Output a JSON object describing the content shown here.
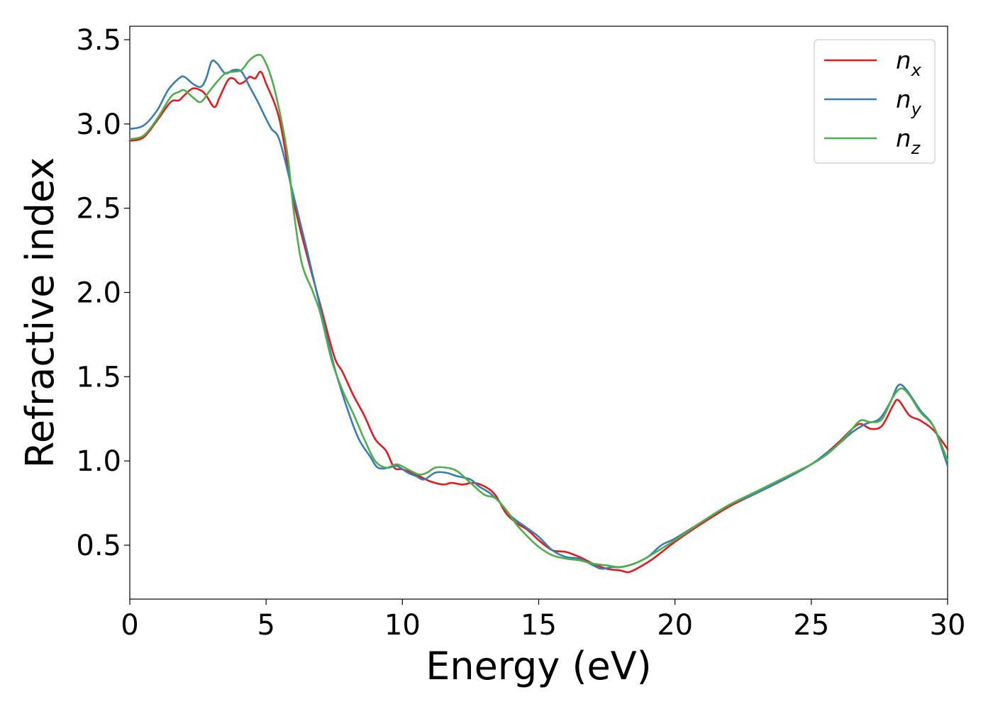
{
  "chart_data": {
    "type": "line",
    "title": "",
    "xlabel": "Energy (eV)",
    "ylabel": "Refractive index",
    "xlim": [
      0,
      30
    ],
    "ylim": [
      0.18,
      3.58
    ],
    "xticks": [
      0,
      5,
      10,
      15,
      20,
      25,
      30
    ],
    "xtick_labels": [
      "0",
      "5",
      "10",
      "15",
      "20",
      "25",
      "30"
    ],
    "yticks": [
      0.5,
      1.0,
      1.5,
      2.0,
      2.5,
      3.0,
      3.5
    ],
    "ytick_labels": [
      "0.5",
      "1.0",
      "1.5",
      "2.0",
      "2.5",
      "3.0",
      "3.5"
    ],
    "grid": false,
    "legend_position": "top-right",
    "series": [
      {
        "name": "n_x",
        "label_base": "n",
        "label_sub": "x",
        "color": "#e41a1c",
        "points": [
          [
            0,
            2.9
          ],
          [
            0.5,
            2.92
          ],
          [
            1,
            3.02
          ],
          [
            1.5,
            3.13
          ],
          [
            1.8,
            3.14
          ],
          [
            2,
            3.17
          ],
          [
            2.3,
            3.21
          ],
          [
            2.6,
            3.2
          ],
          [
            2.8,
            3.17
          ],
          [
            3.1,
            3.1
          ],
          [
            3.3,
            3.16
          ],
          [
            3.6,
            3.26
          ],
          [
            3.8,
            3.27
          ],
          [
            4.0,
            3.24
          ],
          [
            4.2,
            3.25
          ],
          [
            4.4,
            3.28
          ],
          [
            4.6,
            3.27
          ],
          [
            4.8,
            3.31
          ],
          [
            5.0,
            3.24
          ],
          [
            5.5,
            3.02
          ],
          [
            6.0,
            2.55
          ],
          [
            6.5,
            2.22
          ],
          [
            7.0,
            1.92
          ],
          [
            7.5,
            1.62
          ],
          [
            7.8,
            1.53
          ],
          [
            8.2,
            1.39
          ],
          [
            8.6,
            1.27
          ],
          [
            9.0,
            1.13
          ],
          [
            9.4,
            1.06
          ],
          [
            9.7,
            0.96
          ],
          [
            10.0,
            0.95
          ],
          [
            10.5,
            0.92
          ],
          [
            11.0,
            0.88
          ],
          [
            11.5,
            0.86
          ],
          [
            11.8,
            0.87
          ],
          [
            12.2,
            0.86
          ],
          [
            12.6,
            0.87
          ],
          [
            13.0,
            0.85
          ],
          [
            13.4,
            0.8
          ],
          [
            13.8,
            0.69
          ],
          [
            14.2,
            0.63
          ],
          [
            14.6,
            0.59
          ],
          [
            15.0,
            0.53
          ],
          [
            15.5,
            0.47
          ],
          [
            16.0,
            0.46
          ],
          [
            16.5,
            0.43
          ],
          [
            17.0,
            0.39
          ],
          [
            17.5,
            0.36
          ],
          [
            18.0,
            0.35
          ],
          [
            18.3,
            0.34
          ],
          [
            18.7,
            0.37
          ],
          [
            19.2,
            0.42
          ],
          [
            20.0,
            0.52
          ],
          [
            21.0,
            0.63
          ],
          [
            22.0,
            0.73
          ],
          [
            23.0,
            0.81
          ],
          [
            24.0,
            0.89
          ],
          [
            25.0,
            0.98
          ],
          [
            25.5,
            1.04
          ],
          [
            26.0,
            1.11
          ],
          [
            26.5,
            1.19
          ],
          [
            26.8,
            1.22
          ],
          [
            27.2,
            1.19
          ],
          [
            27.6,
            1.21
          ],
          [
            28.0,
            1.33
          ],
          [
            28.2,
            1.36
          ],
          [
            28.6,
            1.27
          ],
          [
            29.0,
            1.24
          ],
          [
            29.5,
            1.18
          ],
          [
            30.0,
            1.07
          ]
        ]
      },
      {
        "name": "n_y",
        "label_base": "n",
        "label_sub": "y",
        "color": "#377eb8",
        "points": [
          [
            0,
            2.97
          ],
          [
            0.5,
            2.99
          ],
          [
            1,
            3.08
          ],
          [
            1.4,
            3.2
          ],
          [
            1.8,
            3.27
          ],
          [
            2.0,
            3.28
          ],
          [
            2.3,
            3.24
          ],
          [
            2.6,
            3.22
          ],
          [
            2.8,
            3.27
          ],
          [
            3.0,
            3.37
          ],
          [
            3.2,
            3.36
          ],
          [
            3.5,
            3.3
          ],
          [
            3.8,
            3.32
          ],
          [
            4.1,
            3.31
          ],
          [
            4.4,
            3.22
          ],
          [
            4.7,
            3.13
          ],
          [
            5.0,
            3.03
          ],
          [
            5.2,
            2.97
          ],
          [
            5.5,
            2.9
          ],
          [
            6.0,
            2.58
          ],
          [
            6.5,
            2.25
          ],
          [
            7.0,
            1.9
          ],
          [
            7.5,
            1.56
          ],
          [
            8.0,
            1.3
          ],
          [
            8.4,
            1.13
          ],
          [
            8.8,
            1.03
          ],
          [
            9.1,
            0.96
          ],
          [
            9.5,
            0.96
          ],
          [
            9.8,
            0.97
          ],
          [
            10.2,
            0.93
          ],
          [
            10.5,
            0.91
          ],
          [
            10.8,
            0.89
          ],
          [
            11.2,
            0.93
          ],
          [
            11.6,
            0.93
          ],
          [
            12.0,
            0.91
          ],
          [
            12.5,
            0.89
          ],
          [
            12.8,
            0.85
          ],
          [
            13.2,
            0.81
          ],
          [
            13.6,
            0.75
          ],
          [
            14.0,
            0.67
          ],
          [
            14.5,
            0.61
          ],
          [
            15.0,
            0.55
          ],
          [
            15.5,
            0.47
          ],
          [
            16.0,
            0.43
          ],
          [
            16.5,
            0.42
          ],
          [
            17.0,
            0.38
          ],
          [
            17.3,
            0.36
          ],
          [
            17.7,
            0.37
          ],
          [
            18.0,
            0.37
          ],
          [
            18.5,
            0.39
          ],
          [
            19.0,
            0.43
          ],
          [
            19.5,
            0.5
          ],
          [
            20.0,
            0.54
          ],
          [
            21.0,
            0.64
          ],
          [
            22.0,
            0.74
          ],
          [
            23.0,
            0.81
          ],
          [
            24.0,
            0.89
          ],
          [
            25.0,
            0.98
          ],
          [
            25.5,
            1.04
          ],
          [
            26.0,
            1.1
          ],
          [
            26.5,
            1.17
          ],
          [
            27.0,
            1.22
          ],
          [
            27.5,
            1.25
          ],
          [
            27.9,
            1.35
          ],
          [
            28.2,
            1.45
          ],
          [
            28.5,
            1.42
          ],
          [
            29.0,
            1.3
          ],
          [
            29.5,
            1.2
          ],
          [
            30.0,
            0.97
          ]
        ]
      },
      {
        "name": "n_z",
        "label_base": "n",
        "label_sub": "z",
        "color": "#4daf4a",
        "points": [
          [
            0,
            2.91
          ],
          [
            0.5,
            2.93
          ],
          [
            1,
            3.03
          ],
          [
            1.5,
            3.16
          ],
          [
            1.8,
            3.19
          ],
          [
            2.0,
            3.2
          ],
          [
            2.3,
            3.16
          ],
          [
            2.6,
            3.13
          ],
          [
            2.9,
            3.19
          ],
          [
            3.2,
            3.25
          ],
          [
            3.5,
            3.3
          ],
          [
            3.8,
            3.31
          ],
          [
            4.1,
            3.32
          ],
          [
            4.4,
            3.38
          ],
          [
            4.7,
            3.41
          ],
          [
            4.9,
            3.39
          ],
          [
            5.2,
            3.27
          ],
          [
            5.5,
            3.07
          ],
          [
            5.8,
            2.8
          ],
          [
            6.0,
            2.5
          ],
          [
            6.3,
            2.18
          ],
          [
            6.7,
            2.01
          ],
          [
            7.0,
            1.87
          ],
          [
            7.4,
            1.6
          ],
          [
            7.8,
            1.42
          ],
          [
            8.2,
            1.28
          ],
          [
            8.6,
            1.13
          ],
          [
            9.0,
            1.0
          ],
          [
            9.4,
            0.96
          ],
          [
            9.8,
            0.98
          ],
          [
            10.2,
            0.95
          ],
          [
            10.6,
            0.92
          ],
          [
            10.9,
            0.93
          ],
          [
            11.2,
            0.96
          ],
          [
            11.6,
            0.96
          ],
          [
            12.0,
            0.94
          ],
          [
            12.5,
            0.87
          ],
          [
            13.0,
            0.8
          ],
          [
            13.4,
            0.78
          ],
          [
            13.8,
            0.71
          ],
          [
            14.2,
            0.62
          ],
          [
            14.6,
            0.55
          ],
          [
            15.0,
            0.49
          ],
          [
            15.5,
            0.44
          ],
          [
            16.0,
            0.42
          ],
          [
            16.5,
            0.41
          ],
          [
            17.0,
            0.39
          ],
          [
            17.5,
            0.38
          ],
          [
            18.0,
            0.37
          ],
          [
            18.5,
            0.39
          ],
          [
            19.0,
            0.43
          ],
          [
            20.0,
            0.53
          ],
          [
            21.0,
            0.64
          ],
          [
            22.0,
            0.74
          ],
          [
            23.0,
            0.82
          ],
          [
            24.0,
            0.9
          ],
          [
            25.0,
            0.98
          ],
          [
            25.5,
            1.03
          ],
          [
            26.0,
            1.1
          ],
          [
            26.4,
            1.17
          ],
          [
            26.8,
            1.24
          ],
          [
            27.2,
            1.23
          ],
          [
            27.6,
            1.25
          ],
          [
            28.0,
            1.38
          ],
          [
            28.3,
            1.43
          ],
          [
            28.6,
            1.39
          ],
          [
            29.0,
            1.29
          ],
          [
            29.5,
            1.2
          ],
          [
            30.0,
            1.0
          ]
        ]
      }
    ]
  }
}
